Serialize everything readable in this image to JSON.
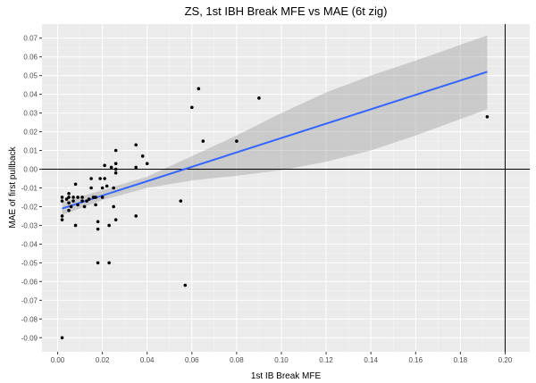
{
  "chart_data": {
    "type": "scatter",
    "title": "ZS, 1st IBH Break MFE vs MAE (6t zig)",
    "xlabel": "1st IB Break MFE",
    "ylabel": "MAE of first pullback",
    "xlim": [
      -0.007,
      0.211
    ],
    "ylim": [
      -0.0975,
      0.0775
    ],
    "x_ticks": [
      0.0,
      0.02,
      0.04,
      0.06,
      0.08,
      0.1,
      0.12,
      0.14,
      0.16,
      0.18,
      0.2
    ],
    "x_tick_labels": [
      "0.00",
      "0.02",
      "0.04",
      "0.06",
      "0.08",
      "0.10",
      "0.12",
      "0.14",
      "0.16",
      "0.18",
      "0.20"
    ],
    "y_ticks": [
      -0.09,
      -0.08,
      -0.07,
      -0.06,
      -0.05,
      -0.04,
      -0.03,
      -0.02,
      -0.01,
      0.0,
      0.01,
      0.02,
      0.03,
      0.04,
      0.05,
      0.06,
      0.07
    ],
    "y_tick_labels": [
      "-0.09",
      "-0.08",
      "-0.07",
      "-0.06",
      "-0.05",
      "-0.04",
      "-0.03",
      "-0.02",
      "-0.01",
      "0.00",
      "0.01",
      "0.02",
      "0.03",
      "0.04",
      "0.05",
      "0.06",
      "0.07"
    ],
    "reference_lines": {
      "horizontal_y": 0.0,
      "vertical_x": 0.2
    },
    "grid": true,
    "background": "#ebebeb",
    "points": [
      {
        "x": 0.002,
        "y": -0.015
      },
      {
        "x": 0.002,
        "y": -0.017
      },
      {
        "x": 0.002,
        "y": -0.025
      },
      {
        "x": 0.002,
        "y": -0.027
      },
      {
        "x": 0.002,
        "y": -0.09
      },
      {
        "x": 0.004,
        "y": -0.016
      },
      {
        "x": 0.005,
        "y": -0.013
      },
      {
        "x": 0.005,
        "y": -0.015
      },
      {
        "x": 0.005,
        "y": -0.018
      },
      {
        "x": 0.005,
        "y": -0.022
      },
      {
        "x": 0.006,
        "y": -0.02
      },
      {
        "x": 0.007,
        "y": -0.015
      },
      {
        "x": 0.007,
        "y": -0.017
      },
      {
        "x": 0.008,
        "y": -0.008
      },
      {
        "x": 0.008,
        "y": -0.03
      },
      {
        "x": 0.009,
        "y": -0.015
      },
      {
        "x": 0.009,
        "y": -0.019
      },
      {
        "x": 0.011,
        "y": -0.015
      },
      {
        "x": 0.011,
        "y": -0.017
      },
      {
        "x": 0.012,
        "y": -0.02
      },
      {
        "x": 0.013,
        "y": -0.017
      },
      {
        "x": 0.014,
        "y": -0.016
      },
      {
        "x": 0.015,
        "y": -0.005
      },
      {
        "x": 0.015,
        "y": -0.01
      },
      {
        "x": 0.016,
        "y": -0.015
      },
      {
        "x": 0.017,
        "y": -0.015
      },
      {
        "x": 0.017,
        "y": -0.019
      },
      {
        "x": 0.018,
        "y": -0.028
      },
      {
        "x": 0.018,
        "y": -0.032
      },
      {
        "x": 0.018,
        "y": -0.05
      },
      {
        "x": 0.019,
        "y": -0.005
      },
      {
        "x": 0.02,
        "y": -0.01
      },
      {
        "x": 0.02,
        "y": -0.015
      },
      {
        "x": 0.021,
        "y": 0.002
      },
      {
        "x": 0.021,
        "y": -0.005
      },
      {
        "x": 0.022,
        "y": -0.009
      },
      {
        "x": 0.023,
        "y": -0.03
      },
      {
        "x": 0.023,
        "y": -0.05
      },
      {
        "x": 0.024,
        "y": 0.001
      },
      {
        "x": 0.025,
        "y": -0.01
      },
      {
        "x": 0.025,
        "y": -0.02
      },
      {
        "x": 0.026,
        "y": 0.01
      },
      {
        "x": 0.026,
        "y": 0.003
      },
      {
        "x": 0.026,
        "y": 0.0
      },
      {
        "x": 0.026,
        "y": -0.002
      },
      {
        "x": 0.026,
        "y": -0.027
      },
      {
        "x": 0.035,
        "y": 0.013
      },
      {
        "x": 0.035,
        "y": 0.001
      },
      {
        "x": 0.035,
        "y": -0.025
      },
      {
        "x": 0.038,
        "y": 0.007
      },
      {
        "x": 0.04,
        "y": 0.003
      },
      {
        "x": 0.055,
        "y": -0.017
      },
      {
        "x": 0.057,
        "y": -0.062
      },
      {
        "x": 0.06,
        "y": 0.033
      },
      {
        "x": 0.063,
        "y": 0.043
      },
      {
        "x": 0.065,
        "y": 0.015
      },
      {
        "x": 0.08,
        "y": 0.015
      },
      {
        "x": 0.09,
        "y": 0.038
      },
      {
        "x": 0.192,
        "y": 0.028
      }
    ],
    "regression": {
      "method": "linear",
      "color": "#3366ff",
      "band_color": "#999999",
      "x_start": 0.002,
      "x_end": 0.192,
      "y_start": -0.021,
      "y_end": 0.052,
      "band": [
        {
          "x": 0.002,
          "lo": -0.0245,
          "hi": -0.0175
        },
        {
          "x": 0.02,
          "lo": -0.0165,
          "hi": -0.0112
        },
        {
          "x": 0.04,
          "lo": -0.01,
          "hi": -0.004
        },
        {
          "x": 0.06,
          "lo": -0.006,
          "hi": 0.007
        },
        {
          "x": 0.08,
          "lo": -0.0035,
          "hi": 0.018
        },
        {
          "x": 0.1,
          "lo": -0.0005,
          "hi": 0.03
        },
        {
          "x": 0.12,
          "lo": 0.004,
          "hi": 0.041
        },
        {
          "x": 0.14,
          "lo": 0.01,
          "hi": 0.05
        },
        {
          "x": 0.16,
          "lo": 0.018,
          "hi": 0.058
        },
        {
          "x": 0.192,
          "lo": 0.032,
          "hi": 0.0715
        }
      ]
    }
  }
}
